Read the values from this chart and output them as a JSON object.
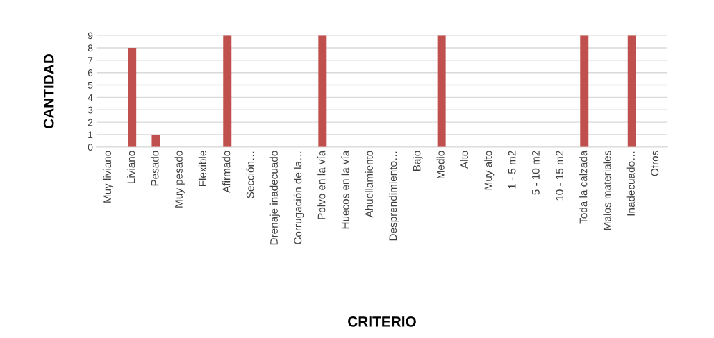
{
  "chart_data": {
    "type": "bar",
    "categories": [
      "Muy liviano",
      "Liviano",
      "Pesado",
      "Muy pesado",
      "Flexible",
      "Afirmado",
      "Sección…",
      "Drenaje inadecuado",
      "Corrugación de la…",
      "Polvo en la vía",
      "Huecos en la vía",
      "Ahuellamiento",
      "Desprendimiento…",
      "Bajo",
      "Medio",
      "Alto",
      "Muy alto",
      "1 - 5 m2",
      "5 - 10 m2",
      "10 - 15 m2",
      "Toda la calzada",
      "Malos materiales",
      "Inadecuado…",
      "Otros"
    ],
    "values": [
      0,
      8,
      1,
      0,
      0,
      9,
      0,
      0,
      0,
      9,
      0,
      0,
      0,
      0,
      9,
      0,
      0,
      0,
      0,
      0,
      9,
      0,
      9,
      0
    ],
    "color": "#c0504d",
    "xlabel": "CRITERIO",
    "ylabel": "CANTIDAD",
    "ylim": [
      0,
      9
    ],
    "yticks": [
      0,
      1,
      2,
      3,
      4,
      5,
      6,
      7,
      8,
      9
    ],
    "grid": "y",
    "legend": false
  }
}
